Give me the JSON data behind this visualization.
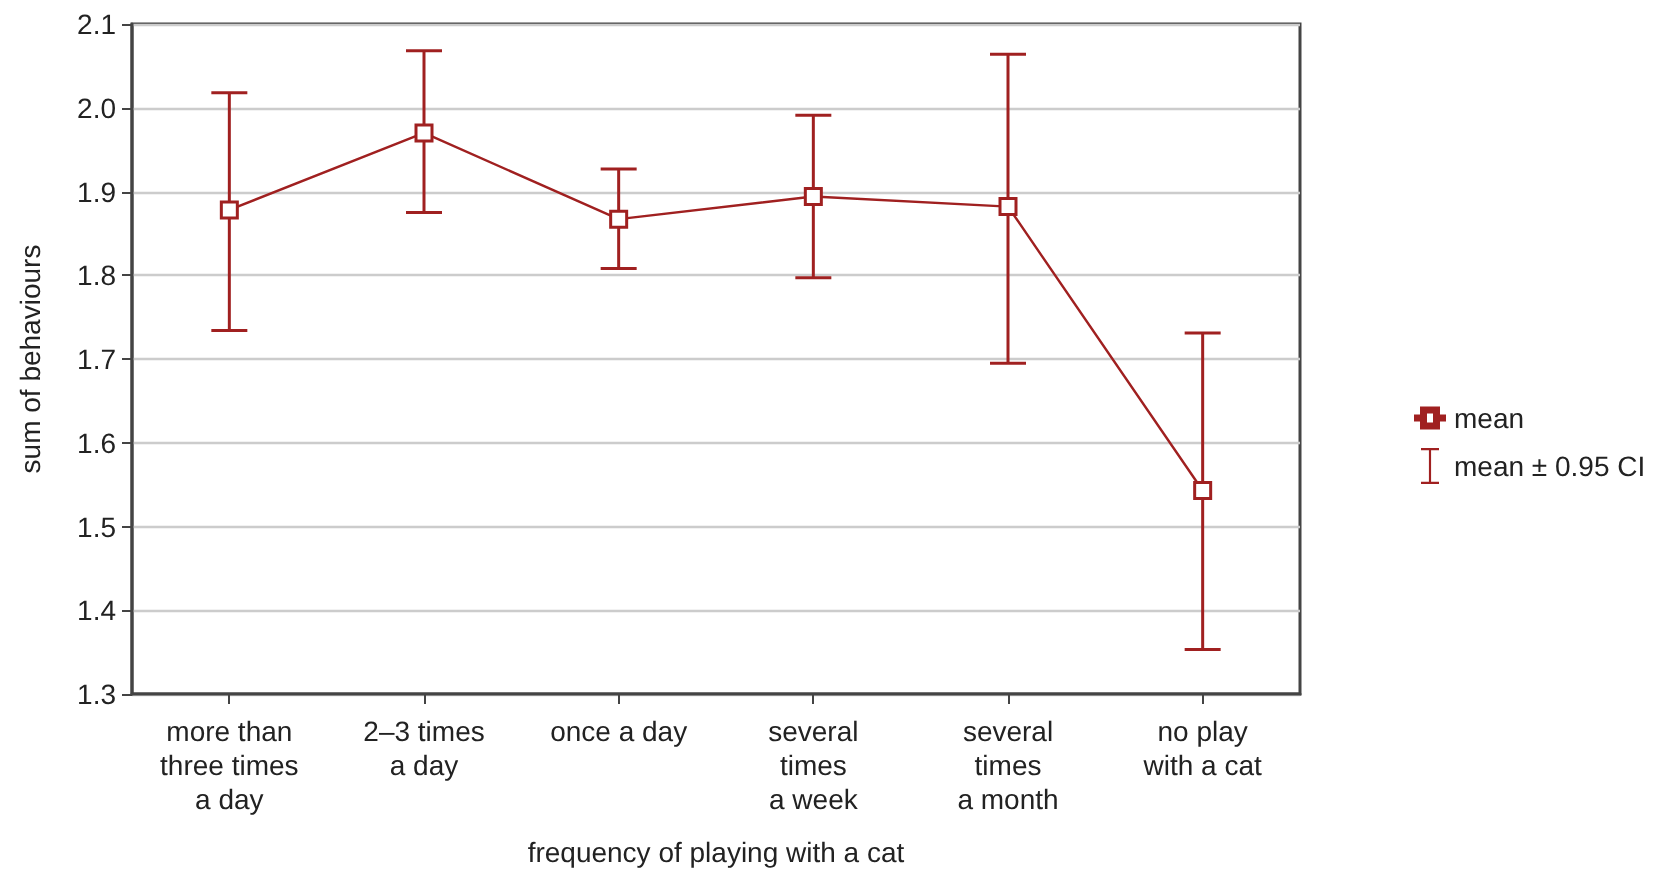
{
  "chart_data": {
    "type": "line",
    "xlabel": "frequency of playing with a cat",
    "ylabel": "sum of behaviours",
    "categories": [
      "more than\nthree times\na day",
      "2–3 times\na day",
      "once a day",
      "several\ntimes\na week",
      "several\ntimes\na month",
      "no play\nwith a cat"
    ],
    "series": [
      {
        "name": "mean",
        "color": "#a02020",
        "values": [
          1.878,
          1.97,
          1.867,
          1.894,
          1.882,
          1.543
        ],
        "errors": [
          [
            1.734,
            2.018
          ],
          [
            1.875,
            2.068
          ],
          [
            1.808,
            1.927
          ],
          [
            1.797,
            1.991
          ],
          [
            1.695,
            2.064
          ],
          [
            1.353,
            1.731
          ]
        ]
      }
    ],
    "annotations": [
      "mean ± 0.95 CI"
    ],
    "ylim": [
      1.3,
      2.1
    ],
    "yticks": [
      1.3,
      1.4,
      1.5,
      1.6,
      1.7,
      1.8,
      1.9,
      {
        "value": 2.0,
        "label": "2.0"
      },
      2.1
    ],
    "grid": "y",
    "legend": "right",
    "marker": "square",
    "line_style": "solid"
  }
}
